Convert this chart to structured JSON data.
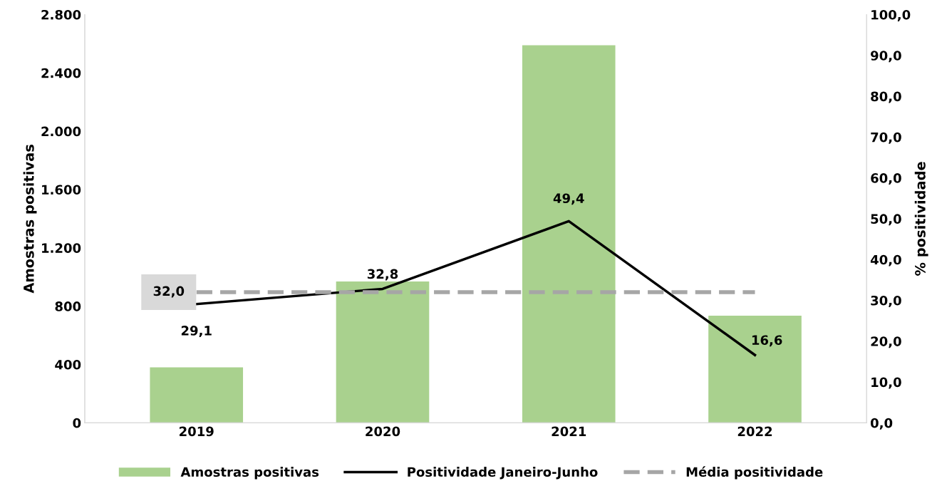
{
  "chart_data": {
    "type": "bar",
    "categories": [
      "2019",
      "2020",
      "2021",
      "2022"
    ],
    "ylabel": "Amostras positivas",
    "y2label": "% positividade",
    "ylim": [
      0,
      2800
    ],
    "yticks": [
      0,
      400,
      800,
      {
        "value": 1200,
        "label": "1.200"
      },
      {
        "value": 1600,
        "label": "1.600"
      },
      {
        "value": 2000,
        "label": "2.000"
      },
      {
        "value": 2400,
        "label": "2.400"
      },
      {
        "value": 2800,
        "label": "2.800"
      }
    ],
    "y2lim": [
      0,
      100
    ],
    "y2ticks": [
      {
        "value": 0,
        "label": "0,0"
      },
      {
        "value": 10,
        "label": "10,0"
      },
      {
        "value": 20,
        "label": "20,0"
      },
      {
        "value": 30,
        "label": "30,0"
      },
      {
        "value": 40,
        "label": "40,0"
      },
      {
        "value": 50,
        "label": "50,0"
      },
      {
        "value": 60,
        "label": "60,0"
      },
      {
        "value": 70,
        "label": "70,0"
      },
      {
        "value": 80,
        "label": "80,0"
      },
      {
        "value": 90,
        "label": "90,0"
      },
      {
        "value": 100,
        "label": "100,0"
      }
    ],
    "grid": false,
    "legend": "bottom",
    "marker": "none",
    "series": [
      {
        "name": "Amostras positivas",
        "color": "#a9d18e",
        "values": [
          380,
          970,
          2590,
          735
        ]
      },
      {
        "name": "Positividade Janeiro-Junho",
        "type": "line",
        "axis": "y2",
        "color": "#000000",
        "line_style": "solid",
        "values": [
          29.1,
          32.8,
          49.4,
          16.6
        ],
        "value_labels": [
          "29,1",
          "32,8",
          "49,4",
          "16,6"
        ]
      },
      {
        "name": "Média positividade",
        "type": "line",
        "axis": "y2",
        "color": "#a6a6a6",
        "line_style": "dashed",
        "values": [
          32.0,
          32.0,
          32.0,
          32.0
        ],
        "value_labels": [
          "32,0",
          null,
          null,
          null
        ]
      }
    ]
  }
}
